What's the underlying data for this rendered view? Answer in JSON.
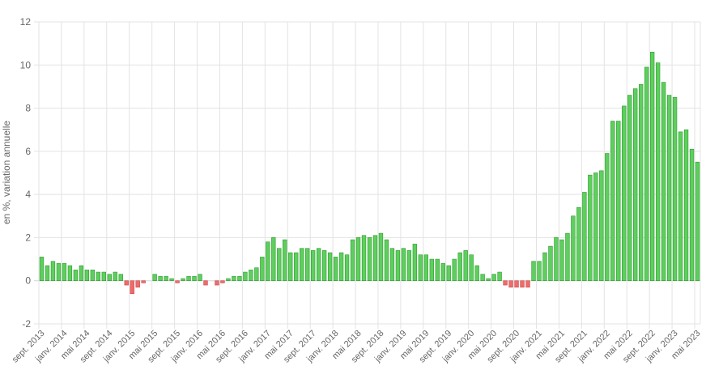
{
  "chart_data": {
    "type": "bar",
    "ylabel": "en %, variation annuelle",
    "ylim": [
      -2,
      12
    ],
    "yticks": [
      -2,
      0,
      2,
      4,
      6,
      8,
      10,
      12
    ],
    "grid": true,
    "colors": {
      "positive": "#5ecf5e",
      "positive_edge": "#2e9a2e",
      "negative": "#ef6b6b",
      "negative_edge": "#c84848"
    },
    "x_tick_labels": [
      "sept. 2013",
      "janv. 2014",
      "mai 2014",
      "sept. 2014",
      "janv. 2015",
      "mai 2015",
      "sept. 2015",
      "janv. 2016",
      "mai 2016",
      "sept. 2016",
      "janv. 2017",
      "mai 2017",
      "sept. 2017",
      "janv. 2018",
      "mai 2018",
      "sept. 2018",
      "janv. 2019",
      "mai 2019",
      "sept. 2019",
      "janv. 2020",
      "mai 2020",
      "sept. 2020",
      "janv. 2021",
      "mai 2021",
      "sept. 2021",
      "janv. 2022",
      "mai 2022",
      "sept. 2022",
      "janv. 2023",
      "mai 2023"
    ],
    "values": [
      1.1,
      0.7,
      0.9,
      0.8,
      0.8,
      0.7,
      0.5,
      0.7,
      0.5,
      0.5,
      0.4,
      0.4,
      0.3,
      0.4,
      0.3,
      -0.2,
      -0.6,
      -0.3,
      -0.1,
      0.0,
      0.3,
      0.2,
      0.2,
      0.1,
      -0.1,
      0.1,
      0.2,
      0.2,
      0.3,
      -0.2,
      0.0,
      -0.2,
      -0.1,
      0.1,
      0.2,
      0.2,
      0.4,
      0.5,
      0.6,
      1.1,
      1.8,
      2.0,
      1.5,
      1.9,
      1.3,
      1.3,
      1.5,
      1.5,
      1.4,
      1.5,
      1.4,
      1.3,
      1.1,
      1.3,
      1.2,
      1.9,
      2.0,
      2.1,
      2.0,
      2.1,
      2.2,
      1.9,
      1.5,
      1.4,
      1.5,
      1.4,
      1.7,
      1.2,
      1.2,
      1.0,
      1.0,
      0.8,
      0.7,
      1.0,
      1.3,
      1.4,
      1.2,
      0.7,
      0.3,
      0.1,
      0.3,
      0.4,
      -0.2,
      -0.3,
      -0.3,
      -0.3,
      -0.3,
      0.9,
      0.9,
      1.3,
      1.6,
      2.0,
      1.9,
      2.2,
      3.0,
      3.4,
      4.1,
      4.9,
      5.0,
      5.1,
      5.9,
      7.4,
      7.4,
      8.1,
      8.6,
      8.9,
      9.1,
      9.9,
      10.6,
      10.1,
      9.2,
      8.6,
      8.5,
      6.9,
      7.0,
      6.1,
      5.5
    ]
  }
}
